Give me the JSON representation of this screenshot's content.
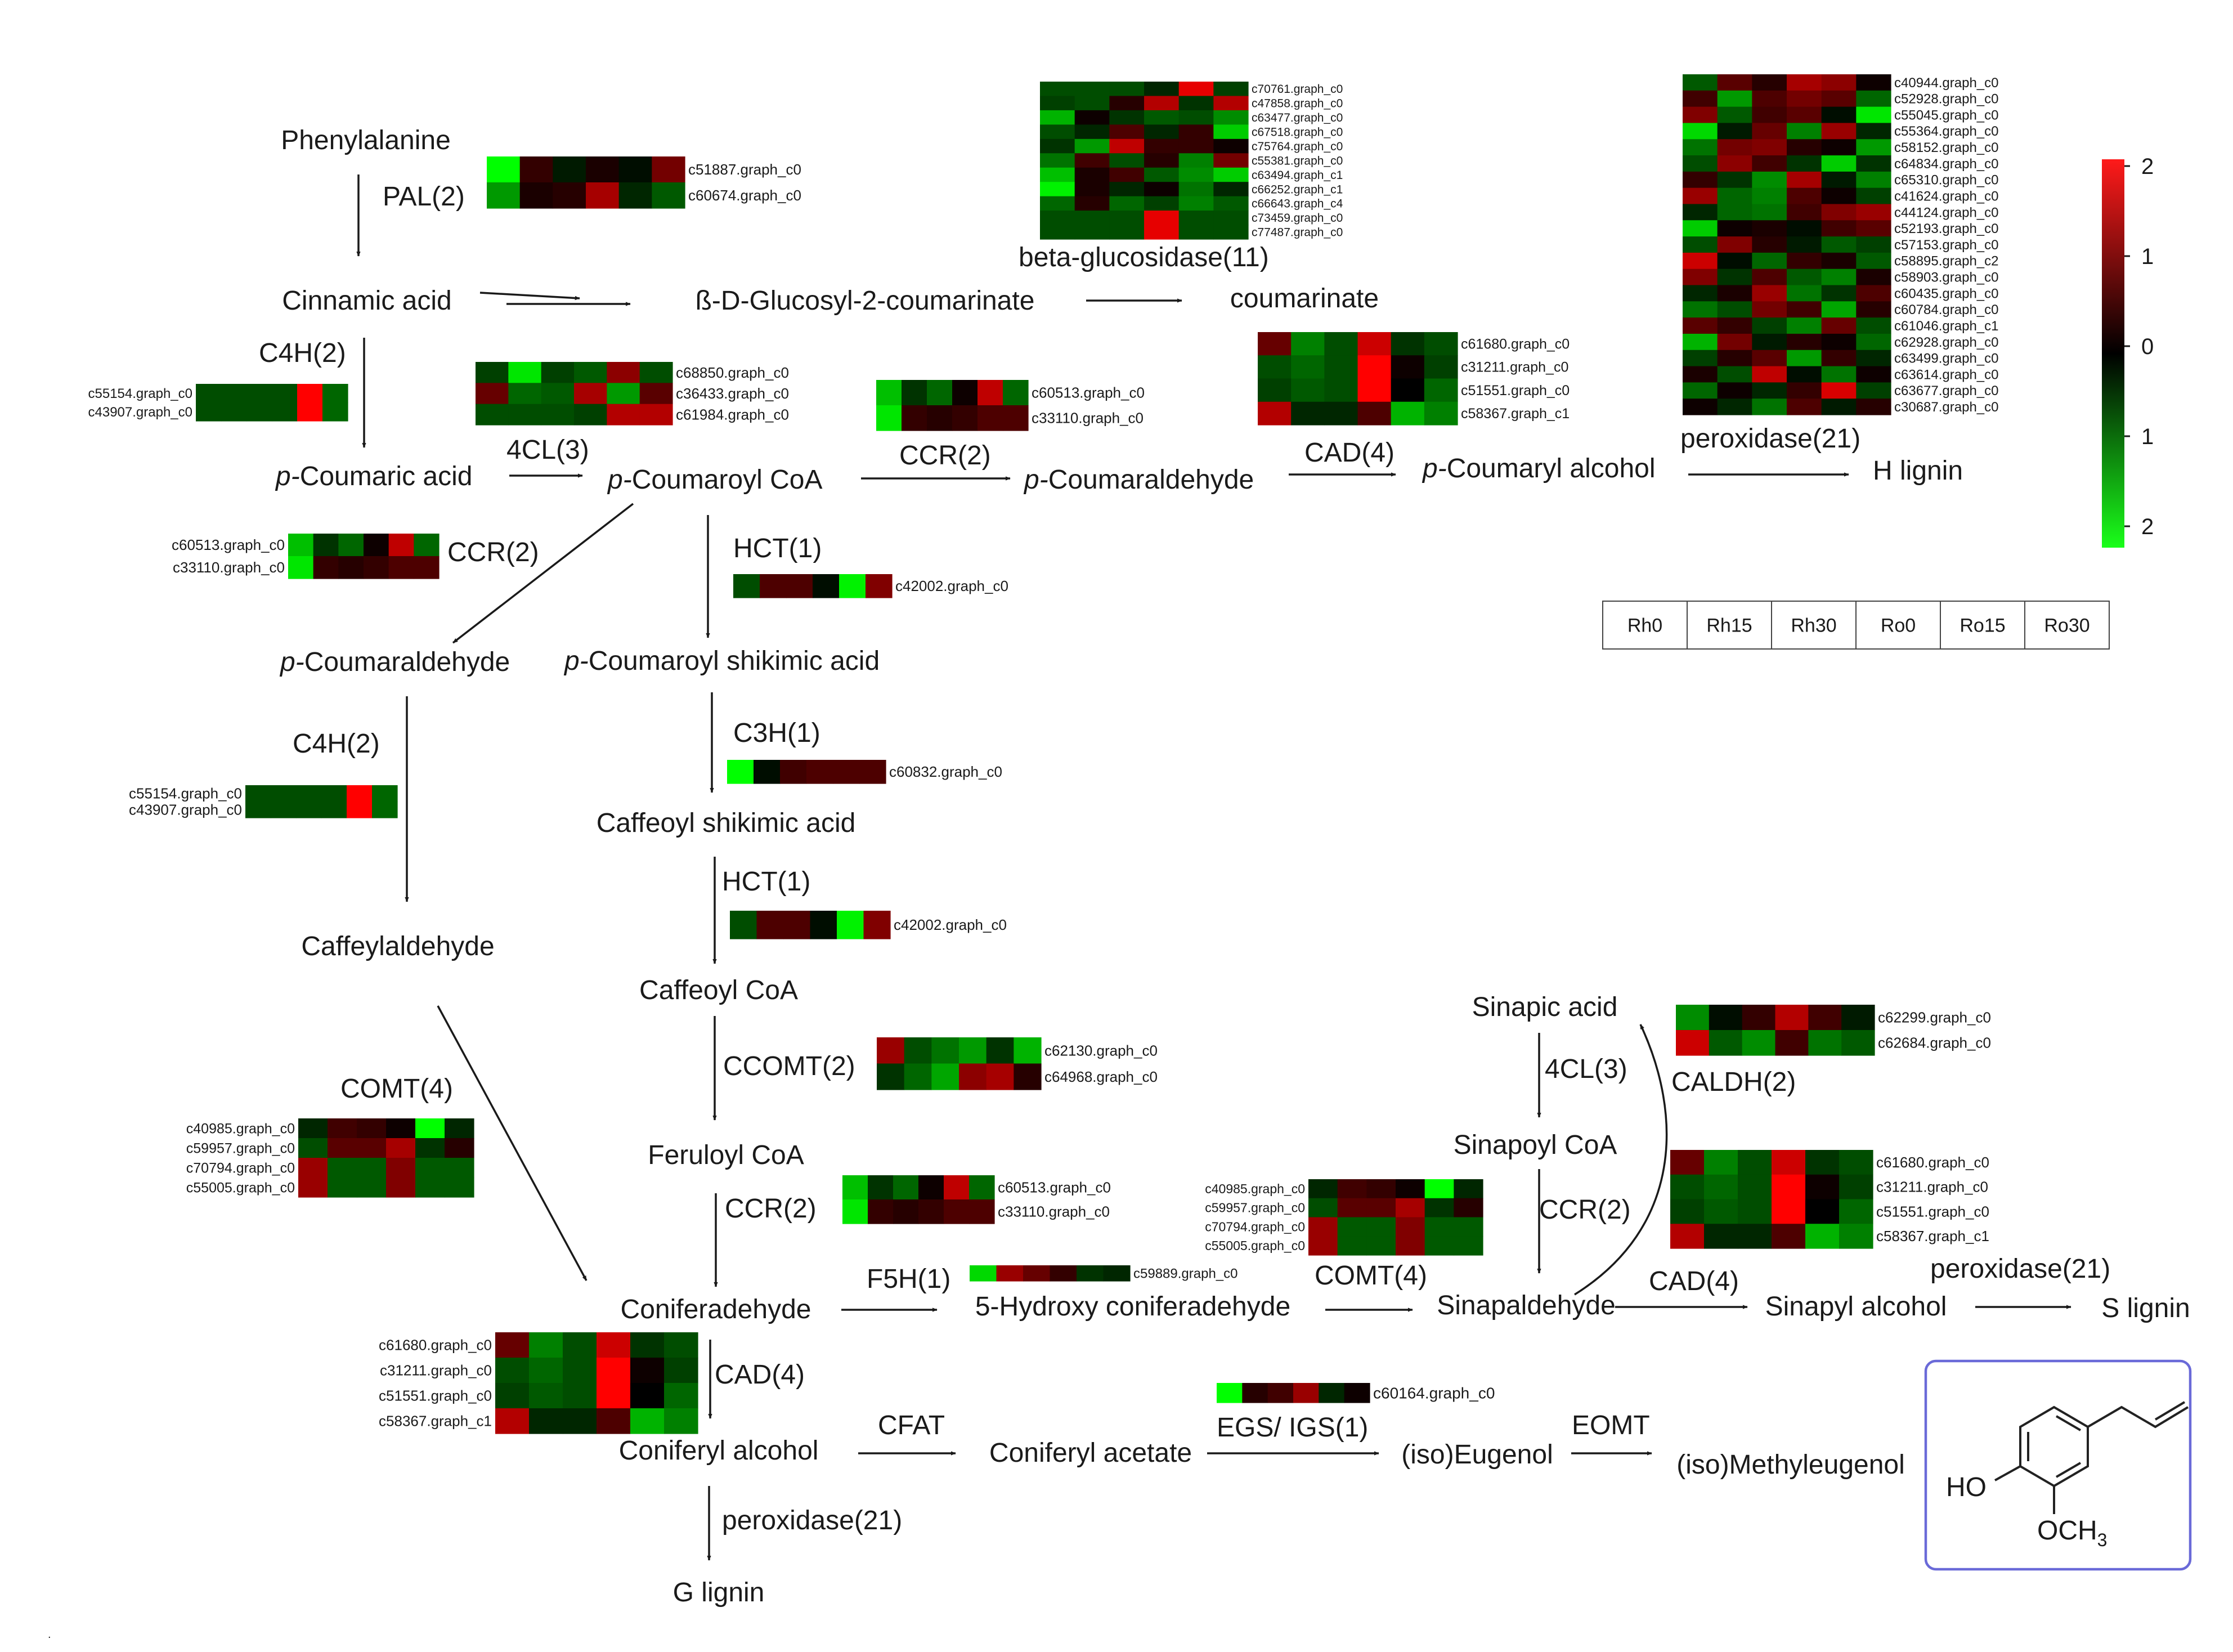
{
  "compounds": {
    "phenylalanine": "Phenylalanine",
    "cinnamic_acid": "Cinnamic acid",
    "glucosyl": "ß-D-Glucosyl-2-coumarinate",
    "coumarinate": "coumarinate",
    "p_coumaric_acid": "Coumaric acid",
    "p_coumaroyl_coa_a": "Coumaroyl CoA",
    "p_coumaraldehyde_a": "Coumaraldehyde",
    "p_coumaryl_alcohol": "Coumaryl alcohol",
    "h_lignin": "H lignin",
    "p_coumaraldehyde_b": "Coumaraldehyde",
    "p_coumaroyl_shikimic": "Coumaroyl shikimic acid",
    "caffeoyl_shikimic": "Caffeoyl shikimic acid",
    "caffeylaldehyde": "Caffeylaldehyde",
    "caffeoyl_coa": "Caffeoyl CoA",
    "feruloyl_coa": "Feruloyl CoA",
    "coniferadehyde": "Coniferadehyde",
    "hydroxy_coniferadehyde": "5-Hydroxy coniferadehyde",
    "sinapaldehyde": "Sinapaldehyde",
    "sinapic_acid": "Sinapic acid",
    "sinapoyl_coa": "Sinapoyl CoA",
    "sinapyl_alcohol": "Sinapyl alcohol",
    "s_lignin": "S lignin",
    "coniferyl_alcohol": "Coniferyl alcohol",
    "coniferyl_acetate": "Coniferyl acetate",
    "iso_eugenol": "(iso)Eugenol",
    "iso_methyleugenol": "(iso)Methyleugenol",
    "g_lignin": "G lignin",
    "p_prefix": "p-"
  },
  "enzymes": {
    "pal": "PAL(2)",
    "c4h_a": "C4H(2)",
    "c4h_b": "C4H(2)",
    "cl4_a": "4CL(3)",
    "ccr_a": "CCR(2)",
    "ccr_b": "CCR(2)",
    "ccr_c": "CCR(2)",
    "ccr_d": "CCR(2)",
    "cad_a": "CAD(4)",
    "cad_b": "CAD(4)",
    "cad_c": "CAD(4)",
    "hct_a": "HCT(1)",
    "hct_b": "HCT(1)",
    "c3h": "C3H(1)",
    "ccomt": "CCOMT(2)",
    "comt_a": "COMT(4)",
    "comt_b": "COMT(4)",
    "f5h": "F5H(1)",
    "cl4_b": "4CL(3)",
    "caldh": "CALDH(2)",
    "beta_glucosidase": "beta-glucosidase(11)",
    "peroxidase_a": "peroxidase(21)",
    "peroxidase_b": "peroxidase(21)",
    "peroxidase_c": "peroxidase(21)",
    "cfat": "CFAT",
    "egs_igs": "EGS/ IGS(1)",
    "eomt": "EOMT"
  },
  "structure": {
    "ho": "HO",
    "och3": "OCH",
    "sub3": "3"
  },
  "colors": {
    "red": "#ff1a1a",
    "black": "#000000",
    "green": "#1aff1a",
    "frame": "#6a6ad8"
  },
  "legend": {
    "ticks": [
      {
        "label": "2",
        "value": 2
      },
      {
        "label": "1",
        "value": 1
      },
      {
        "label": "0",
        "value": 0
      },
      {
        "label": "1",
        "value": -1
      },
      {
        "label": "2",
        "value": -2
      }
    ],
    "samples": [
      "Rh0",
      "Rh15",
      "Rh30",
      "Ro0",
      "Ro15",
      "Ro30"
    ]
  },
  "heatmaps": {
    "pal": {
      "genes": [
        "c51887.graph_c0",
        "c60674.graph_c0"
      ],
      "values": [
        [
          -2,
          0.4,
          -0.2,
          0.2,
          -0.1,
          0.9
        ],
        [
          -1.2,
          0.2,
          0.3,
          1.3,
          -0.3,
          -0.7
        ]
      ]
    },
    "c4h_a": {
      "genes": [
        "c55154.graph_c0",
        "c43907.graph_c0"
      ],
      "values": [
        [
          -0.6,
          -0.6,
          -0.6,
          -0.6,
          2,
          -0.8
        ],
        [
          -0.6,
          -0.6,
          -0.6,
          -0.6,
          2,
          -0.8
        ]
      ]
    },
    "cl4": {
      "genes": [
        "c68850.graph_c0",
        "c36433.graph_c0",
        "c61984.graph_c0"
      ],
      "values": [
        [
          -0.5,
          -1.8,
          -0.5,
          -0.7,
          1.1,
          -0.6
        ],
        [
          0.8,
          -0.8,
          -0.7,
          1.3,
          -1.2,
          0.7
        ],
        [
          -0.6,
          -0.6,
          -0.6,
          -0.5,
          1.4,
          1.4
        ]
      ]
    },
    "ccr_top": {
      "genes": [
        "c60513.graph_c0",
        "c33110.graph_c0"
      ],
      "values": [
        [
          -1.5,
          -0.4,
          -0.8,
          0.1,
          1.5,
          -0.8
        ],
        [
          -1.8,
          0.4,
          0.3,
          0.4,
          0.6,
          0.6
        ]
      ]
    },
    "beta_glucosidase": {
      "genes": [
        "c70761.graph_c0",
        "c47858.graph_c0",
        "c63477.graph_c0",
        "c67518.graph_c0",
        "c75764.graph_c0",
        "c55381.graph_c0",
        "c63494.graph_c1",
        "c66252.graph_c1",
        "c66643.graph_c4",
        "c73459.graph_c0",
        "c77487.graph_c0"
      ],
      "values": [
        [
          -0.6,
          -0.6,
          -0.6,
          -0.3,
          1.8,
          -0.5
        ],
        [
          -0.5,
          -0.6,
          0.3,
          1.4,
          -0.4,
          1.4
        ],
        [
          -1.4,
          0.1,
          -0.4,
          -0.7,
          -0.6,
          -1.1
        ],
        [
          -0.6,
          -0.3,
          0.6,
          -0.3,
          0.4,
          -1.6
        ],
        [
          -0.4,
          -1.2,
          1.5,
          0.4,
          0.4,
          0.1
        ],
        [
          -0.9,
          0.5,
          -0.6,
          0.3,
          -1.0,
          0.9
        ],
        [
          -1.5,
          0.2,
          0.5,
          -0.7,
          -1.1,
          -1.6
        ],
        [
          -1.9,
          0.2,
          -0.3,
          0.1,
          -0.9,
          -0.3
        ],
        [
          -0.8,
          0.3,
          -0.8,
          -0.5,
          -1.0,
          -0.7
        ],
        [
          -0.6,
          -0.6,
          -0.6,
          1.8,
          -0.6,
          -0.6
        ],
        [
          -0.6,
          -0.6,
          -0.6,
          1.8,
          -0.6,
          -0.6
        ]
      ]
    },
    "cad_top": {
      "genes": [
        "c61680.graph_c0",
        "c31211.graph_c0",
        "c51551.graph_c0",
        "c58367.graph_c1"
      ],
      "values": [
        [
          0.8,
          -1.0,
          -0.6,
          1.6,
          -0.4,
          -0.6
        ],
        [
          -0.6,
          -0.8,
          -0.6,
          2,
          0.1,
          -0.5
        ],
        [
          -0.5,
          -0.7,
          -0.6,
          2,
          0.0,
          -0.8
        ],
        [
          1.4,
          -0.3,
          -0.3,
          0.6,
          -1.4,
          -1.0
        ]
      ]
    },
    "peroxidase": {
      "genes": [
        "c40944.graph_c0",
        "c52928.graph_c0",
        "c55045.graph_c0",
        "c55364.graph_c0",
        "c58152.graph_c0",
        "c64834.graph_c0",
        "c65310.graph_c0",
        "c41624.graph_c0",
        "c44124.graph_c0",
        "c52193.graph_c0",
        "c57153.graph_c0",
        "c58895.graph_c2",
        "c58903.graph_c0",
        "c60435.graph_c0",
        "c60784.graph_c0",
        "c61046.graph_c1",
        "c62928.graph_c0",
        "c63499.graph_c0",
        "c63614.graph_c0",
        "c63677.graph_c0",
        "c30687.graph_c0"
      ],
      "values": [
        [
          -0.7,
          0.7,
          0.3,
          1.3,
          1.1,
          0.1
        ],
        [
          0.5,
          -1.2,
          0.6,
          0.9,
          0.7,
          -0.8
        ],
        [
          1.0,
          -0.7,
          0.5,
          0.7,
          -0.1,
          -1.8
        ],
        [
          -1.7,
          -0.2,
          0.8,
          -1.0,
          1.2,
          -0.3
        ],
        [
          -0.9,
          0.9,
          1.0,
          0.3,
          0.1,
          -1.2
        ],
        [
          -0.6,
          1.1,
          0.5,
          -0.4,
          -1.6,
          -0.4
        ],
        [
          0.4,
          -0.4,
          -1.1,
          1.3,
          -0.2,
          -1.0
        ],
        [
          1.2,
          -0.8,
          -1.0,
          0.6,
          0.1,
          -0.5
        ],
        [
          -0.3,
          -0.8,
          -0.9,
          0.5,
          1.0,
          1.2
        ],
        [
          -1.6,
          0.1,
          0.2,
          -0.1,
          0.5,
          0.7
        ],
        [
          -0.6,
          1.0,
          0.3,
          -0.2,
          -0.7,
          -0.5
        ],
        [
          1.6,
          -0.1,
          -0.8,
          0.4,
          0.2,
          -0.7
        ],
        [
          1.0,
          -0.4,
          0.6,
          -0.7,
          -1.0,
          0.2
        ],
        [
          -0.3,
          0.2,
          1.2,
          -0.9,
          -0.4,
          0.6
        ],
        [
          -0.9,
          -0.6,
          0.9,
          0.5,
          -1.3,
          0.3
        ],
        [
          0.7,
          0.4,
          -0.5,
          -1.0,
          0.8,
          -0.6
        ],
        [
          -1.4,
          0.9,
          -0.2,
          0.3,
          0.1,
          -0.8
        ],
        [
          -0.5,
          0.3,
          0.7,
          -1.2,
          0.4,
          -0.3
        ],
        [
          0.2,
          -0.6,
          1.5,
          -0.1,
          -0.9,
          0.1
        ],
        [
          -0.8,
          0.1,
          -0.3,
          0.4,
          1.7,
          -0.5
        ],
        [
          0.1,
          -0.3,
          -0.9,
          0.6,
          -0.2,
          0.3
        ]
      ]
    },
    "ccr_left": {
      "genes": [
        "c60513.graph_c0",
        "c33110.graph_c0"
      ],
      "values": [
        [
          -1.5,
          -0.4,
          -0.8,
          0.1,
          1.5,
          -0.8
        ],
        [
          -1.8,
          0.4,
          0.3,
          0.4,
          0.6,
          0.6
        ]
      ]
    },
    "hct_a": {
      "genes": [
        "c42002.graph_c0"
      ],
      "values": [
        [
          -0.6,
          0.6,
          0.6,
          -0.1,
          -1.9,
          1.0
        ]
      ]
    },
    "c4h_b": {
      "genes": [
        "c55154.graph_c0",
        "c43907.graph_c0"
      ],
      "values": [
        [
          -0.6,
          -0.6,
          -0.6,
          -0.6,
          2,
          -0.8
        ],
        [
          -0.6,
          -0.6,
          -0.6,
          -0.6,
          2,
          -0.8
        ]
      ]
    },
    "c3h": {
      "genes": [
        "c60832.graph_c0"
      ],
      "values": [
        [
          -2,
          -0.1,
          0.5,
          0.6,
          0.6,
          0.6
        ]
      ]
    },
    "hct_b": {
      "genes": [
        "c42002.graph_c0"
      ],
      "values": [
        [
          -0.6,
          0.6,
          0.6,
          -0.1,
          -1.9,
          1.0
        ]
      ]
    },
    "ccomt": {
      "genes": [
        "c62130.graph_c0",
        "c64968.graph_c0"
      ],
      "values": [
        [
          1.2,
          -0.6,
          -0.9,
          -1.2,
          -0.4,
          -1.4
        ],
        [
          -0.4,
          -0.8,
          -1.3,
          1.1,
          1.3,
          0.3
        ]
      ]
    },
    "comt_left": {
      "genes": [
        "c40985.graph_c0",
        "c59957.graph_c0",
        "c70794.graph_c0",
        "c55005.graph_c0"
      ],
      "values": [
        [
          -0.3,
          0.5,
          0.4,
          0.1,
          -2,
          -0.3
        ],
        [
          -0.6,
          0.7,
          0.7,
          1.3,
          -0.4,
          0.3
        ],
        [
          1.2,
          -0.7,
          -0.7,
          1.0,
          -0.7,
          -0.7
        ],
        [
          1.2,
          -0.7,
          -0.7,
          1.0,
          -0.7,
          -0.7
        ]
      ]
    },
    "ccr_mid": {
      "genes": [
        "c60513.graph_c0",
        "c33110.graph_c0"
      ],
      "values": [
        [
          -1.5,
          -0.4,
          -0.8,
          0.1,
          1.5,
          -0.8
        ],
        [
          -1.8,
          0.4,
          0.3,
          0.4,
          0.6,
          0.6
        ]
      ]
    },
    "f5h": {
      "genes": [
        "c59889.graph_c0"
      ],
      "values": [
        [
          -1.7,
          1.2,
          0.8,
          0.4,
          -0.4,
          -0.3
        ]
      ]
    },
    "comt_mid": {
      "genes": [
        "c40985.graph_c0",
        "c59957.graph_c0",
        "c70794.graph_c0",
        "c55005.graph_c0"
      ],
      "values": [
        [
          -0.3,
          0.5,
          0.4,
          0.1,
          -2,
          -0.3
        ],
        [
          -0.6,
          0.7,
          0.7,
          1.3,
          -0.4,
          0.3
        ],
        [
          1.2,
          -0.7,
          -0.7,
          1.0,
          -0.7,
          -0.7
        ],
        [
          1.2,
          -0.7,
          -0.7,
          1.0,
          -0.7,
          -0.7
        ]
      ]
    },
    "caldh": {
      "genes": [
        "c62299.graph_c0",
        "c62684.graph_c0"
      ],
      "values": [
        [
          -1.1,
          -0.1,
          0.4,
          1.4,
          0.5,
          -0.2
        ],
        [
          1.6,
          -0.7,
          -1.1,
          0.5,
          -0.9,
          -0.7
        ]
      ]
    },
    "cad_right": {
      "genes": [
        "c61680.graph_c0",
        "c31211.graph_c0",
        "c51551.graph_c0",
        "c58367.graph_c1"
      ],
      "values": [
        [
          0.8,
          -1.0,
          -0.6,
          1.6,
          -0.4,
          -0.6
        ],
        [
          -0.6,
          -0.8,
          -0.6,
          2,
          0.1,
          -0.5
        ],
        [
          -0.5,
          -0.7,
          -0.6,
          2,
          0.0,
          -0.8
        ],
        [
          1.4,
          -0.3,
          -0.3,
          0.6,
          -1.4,
          -1.0
        ]
      ]
    },
    "cad_left": {
      "genes": [
        "c61680.graph_c0",
        "c31211.graph_c0",
        "c51551.graph_c0",
        "c58367.graph_c1"
      ],
      "values": [
        [
          0.8,
          -1.0,
          -0.6,
          1.6,
          -0.4,
          -0.6
        ],
        [
          -0.6,
          -0.8,
          -0.6,
          2,
          0.1,
          -0.5
        ],
        [
          -0.5,
          -0.7,
          -0.6,
          2,
          0.0,
          -0.8
        ],
        [
          1.4,
          -0.3,
          -0.3,
          0.6,
          -1.4,
          -1.0
        ]
      ]
    },
    "egs": {
      "genes": [
        "c60164.graph_c0"
      ],
      "values": [
        [
          -2,
          0.3,
          0.5,
          1.2,
          -0.3,
          0.1
        ]
      ]
    }
  }
}
